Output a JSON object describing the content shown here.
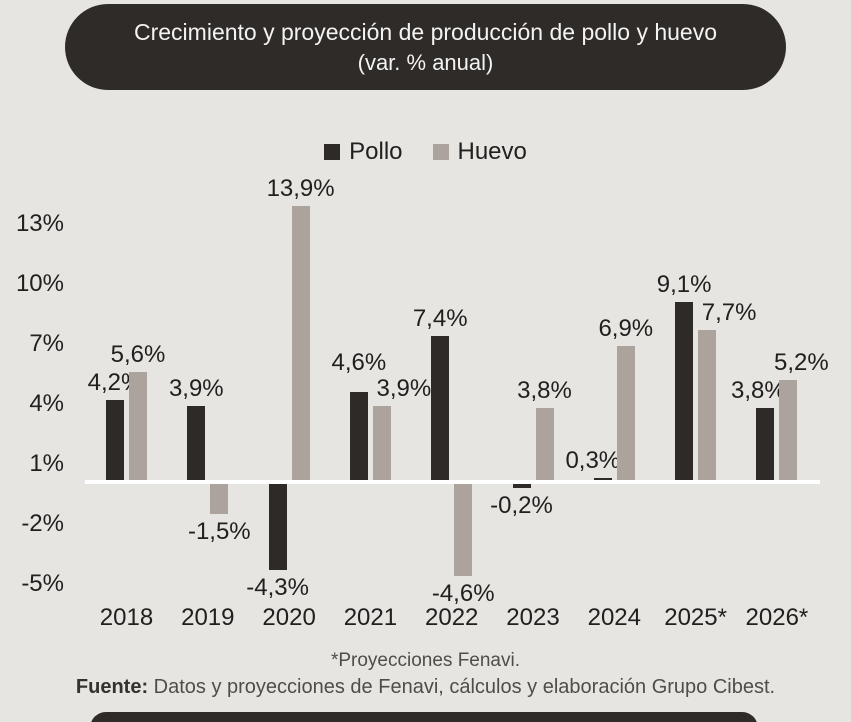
{
  "banner": {
    "line1": "Crecimiento y proyección de producción de pollo y huevo",
    "line2": "(var. % anual)"
  },
  "legend": {
    "items": [
      {
        "label": "Pollo",
        "color": "#2d2a27"
      },
      {
        "label": "Huevo",
        "color": "#aca49c"
      }
    ]
  },
  "chart_data": {
    "type": "bar",
    "title": "Crecimiento y proyección de producción de pollo y huevo (var. % anual)",
    "categories": [
      "2018",
      "2019",
      "2020",
      "2021",
      "2022",
      "2023",
      "2024",
      "2025*",
      "2026*"
    ],
    "series": [
      {
        "name": "Pollo",
        "color": "#2d2a27",
        "values": [
          4.2,
          3.9,
          -4.3,
          4.6,
          7.4,
          -0.2,
          0.3,
          9.1,
          3.8
        ],
        "labels": [
          "4,2%",
          "3,9%",
          "-4,3%",
          "4,6%",
          "7,4%",
          "-0,2%",
          "0,3%",
          "9,1%",
          "3,8%"
        ],
        "label_dx": [
          0,
          0,
          0,
          0,
          0,
          0,
          -10,
          0,
          -7
        ],
        "label_dy": [
          0,
          0,
          0,
          -12,
          0,
          0,
          0,
          0,
          0
        ]
      },
      {
        "name": "Huevo",
        "color": "#aca49c",
        "values": [
          5.6,
          -1.5,
          13.9,
          3.9,
          -4.6,
          3.8,
          6.9,
          7.7,
          5.2
        ],
        "labels": [
          "5,6%",
          "-1,5%",
          "13,9%",
          "3,9%",
          "-4,6%",
          "3,8%",
          "6,9%",
          "7,7%",
          "5,2%"
        ],
        "label_dx": [
          0,
          0,
          0,
          22,
          0,
          0,
          0,
          22,
          13
        ],
        "label_dy": [
          0,
          0,
          0,
          0,
          0,
          0,
          0,
          0,
          0
        ]
      }
    ],
    "projection_flags": [
      false,
      false,
      false,
      false,
      false,
      false,
      false,
      true,
      true
    ],
    "y_ticks": [
      {
        "value": 13,
        "label": "13%"
      },
      {
        "value": 10,
        "label": "10%"
      },
      {
        "value": 7,
        "label": "7%"
      },
      {
        "value": 4,
        "label": "4%"
      },
      {
        "value": 1,
        "label": "1%"
      },
      {
        "value": -2,
        "label": "-2%"
      },
      {
        "value": -5,
        "label": "-5%"
      }
    ],
    "ylim": [
      -6.5,
      14.9
    ],
    "grid": false,
    "legend_position": "top-center",
    "zero_axis_color": "#ffffff"
  },
  "footnote": "*Proyecciones Fenavi.",
  "source": {
    "prefix": "Fuente:",
    "text": " Datos y proyecciones de Fenavi, cálculos y elaboración Grupo Cibest."
  },
  "colors": {
    "background": "#e7e5e2",
    "banner": "#2e2b29",
    "banner_text": "#f4f3f1",
    "pollo": "#2d2a27",
    "huevo": "#aca49c",
    "label_text": "#21201e",
    "baseline": "#ffffff"
  }
}
